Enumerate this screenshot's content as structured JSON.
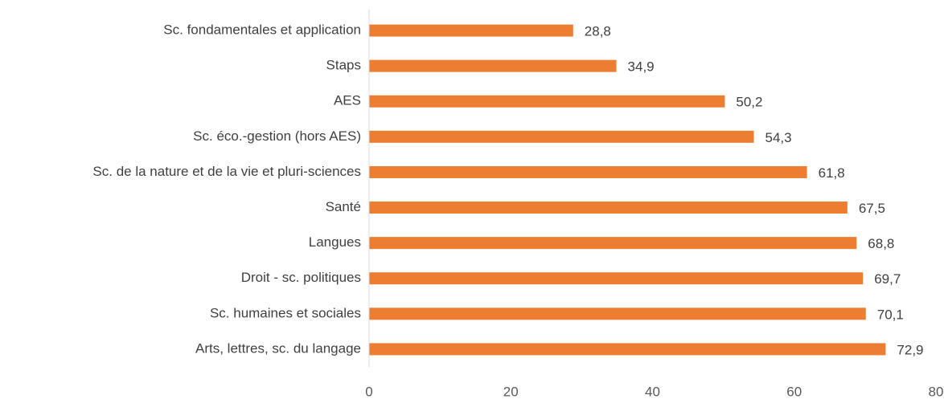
{
  "chart_data": {
    "type": "bar",
    "orientation": "horizontal",
    "categories": [
      "Sc. fondamentales et application",
      "Staps",
      "AES",
      "Sc. éco.-gestion (hors AES)",
      "Sc. de la nature et de la vie et pluri-sciences",
      "Santé",
      "Langues",
      "Droit - sc. politiques",
      "Sc. humaines et sociales",
      "Arts, lettres, sc. du langage"
    ],
    "values": [
      28.8,
      34.9,
      50.2,
      54.3,
      61.8,
      67.5,
      68.8,
      69.7,
      70.1,
      72.9
    ],
    "value_labels": [
      "28,8",
      "34,9",
      "50,2",
      "54,3",
      "61,8",
      "67,5",
      "68,8",
      "69,7",
      "70,1",
      "72,9"
    ],
    "color": "#ed7d31",
    "xlim": [
      0,
      80
    ],
    "xticks": [
      0,
      20,
      40,
      60,
      80
    ],
    "grid": false
  }
}
